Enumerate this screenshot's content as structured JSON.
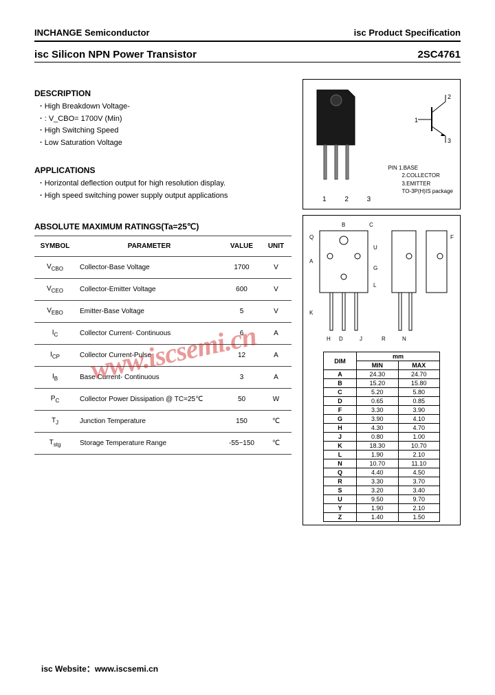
{
  "header": {
    "company": "INCHANGE Semiconductor",
    "spec": "isc Product Specification"
  },
  "title": {
    "product": "isc Silicon NPN Power Transistor",
    "partno": "2SC4761"
  },
  "description": {
    "heading": "DESCRIPTION",
    "items": [
      "High Breakdown Voltage-",
      ": V_CBO= 1700V (Min)",
      "High Switching Speed",
      "Low Saturation Voltage"
    ]
  },
  "applications": {
    "heading": "APPLICATIONS",
    "items": [
      "Horizontal deflection output for high resolution display.",
      "High speed switching power supply output applications"
    ]
  },
  "ratings": {
    "heading": "ABSOLUTE MAXIMUM RATINGS(Ta=25℃)",
    "columns": {
      "c1": "SYMBOL",
      "c2": "PARAMETER",
      "c3": "VALUE",
      "c4": "UNIT"
    },
    "rows": [
      {
        "sym": "V_CBO",
        "param": "Collector-Base Voltage",
        "value": "1700",
        "unit": "V"
      },
      {
        "sym": "V_CEO",
        "param": "Collector-Emitter Voltage",
        "value": "600",
        "unit": "V"
      },
      {
        "sym": "V_EBO",
        "param": "Emitter-Base Voltage",
        "value": "5",
        "unit": "V"
      },
      {
        "sym": "I_C",
        "param": "Collector Current- Continuous",
        "value": "6",
        "unit": "A"
      },
      {
        "sym": "I_CP",
        "param": "Collector Current-Pulse",
        "value": "12",
        "unit": "A"
      },
      {
        "sym": "I_B",
        "param": "Base Current- Continuous",
        "value": "3",
        "unit": "A"
      },
      {
        "sym": "P_C",
        "param": "Collector Power Dissipation @ TC=25℃",
        "value": "50",
        "unit": "W"
      },
      {
        "sym": "T_J",
        "param": "Junction Temperature",
        "value": "150",
        "unit": "℃"
      },
      {
        "sym": "T_stg",
        "param": "Storage Temperature Range",
        "value": "-55~150",
        "unit": "℃"
      }
    ]
  },
  "package": {
    "pin_nums": "1  2  3",
    "schematic_labels": {
      "l1": "1",
      "l2": "2",
      "l3": "3"
    },
    "legend": {
      "title": "PIN",
      "p1": "1.BASE",
      "p2": "2.COLLECTOR",
      "p3": "3.EMITTER",
      "pkg": "TO-3P(H)IS package"
    }
  },
  "dimensions": {
    "drawing_labels": {
      "a": "A",
      "b": "B",
      "c": "C",
      "d": "D",
      "f": "F",
      "g": "G",
      "h": "H",
      "j": "J",
      "k": "K",
      "l": "L",
      "n": "N",
      "q": "Q",
      "r": "R",
      "s": "S",
      "u": "U"
    },
    "unit_header": "mm",
    "col_dim": "DIM",
    "col_min": "MIN",
    "col_max": "MAX",
    "rows": [
      {
        "d": "A",
        "min": "24.30",
        "max": "24.70"
      },
      {
        "d": "B",
        "min": "15.20",
        "max": "15.80"
      },
      {
        "d": "C",
        "min": "5.20",
        "max": "5.80"
      },
      {
        "d": "D",
        "min": "0.65",
        "max": "0.85"
      },
      {
        "d": "F",
        "min": "3.30",
        "max": "3.90"
      },
      {
        "d": "G",
        "min": "3.90",
        "max": "4.10"
      },
      {
        "d": "H",
        "min": "4.30",
        "max": "4.70"
      },
      {
        "d": "J",
        "min": "0.80",
        "max": "1.00"
      },
      {
        "d": "K",
        "min": "18.30",
        "max": "10.70"
      },
      {
        "d": "L",
        "min": "1.90",
        "max": "2.10"
      },
      {
        "d": "N",
        "min": "10.70",
        "max": "11.10"
      },
      {
        "d": "Q",
        "min": "4.40",
        "max": "4.50"
      },
      {
        "d": "R",
        "min": "3.30",
        "max": "3.70"
      },
      {
        "d": "S",
        "min": "3.20",
        "max": "3.40"
      },
      {
        "d": "U",
        "min": "9.50",
        "max": "9.70"
      },
      {
        "d": "Y",
        "min": "1.90",
        "max": "2.10"
      },
      {
        "d": "Z",
        "min": "1.40",
        "max": "1.50"
      }
    ]
  },
  "watermark": "www.iscsemi.cn",
  "footer": {
    "label": "isc Website：",
    "url": "www.iscsemi.cn"
  }
}
